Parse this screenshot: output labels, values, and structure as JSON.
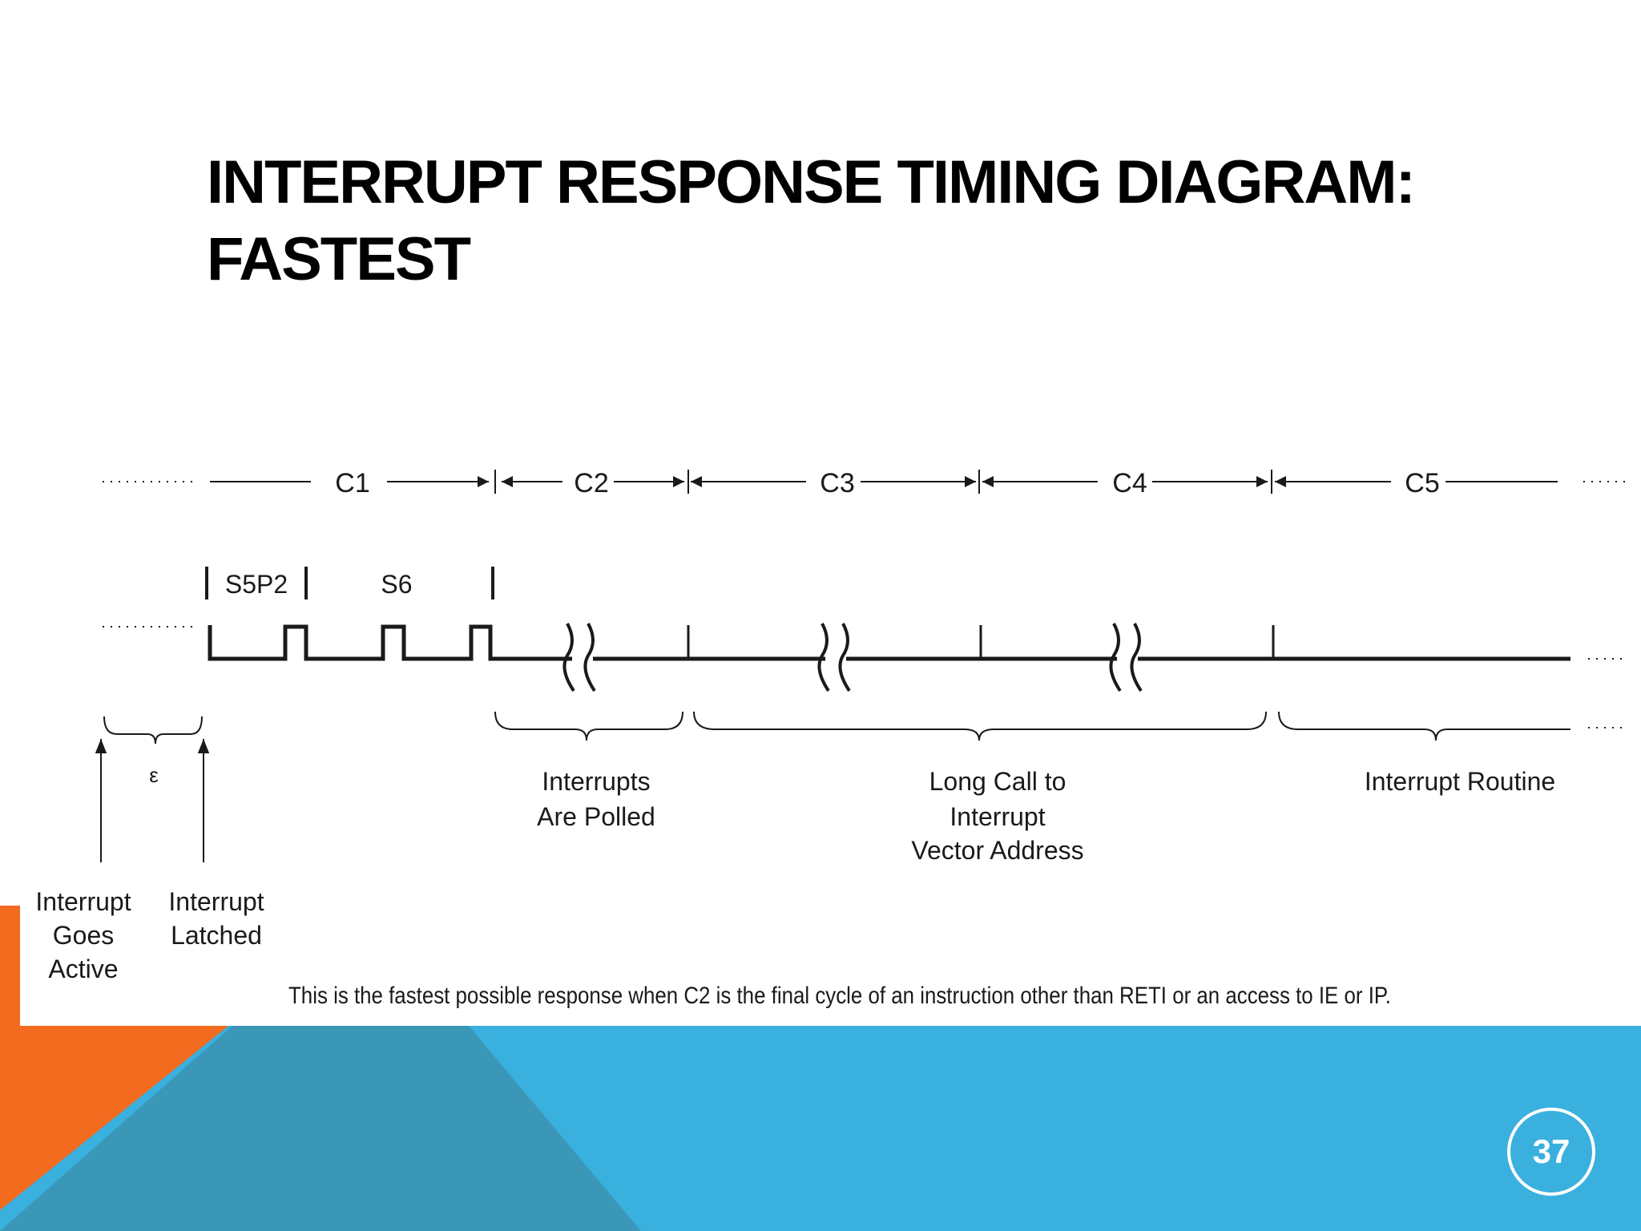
{
  "slide": {
    "title_lines": [
      "INTERRUPT RESPONSE TIMING DIAGRAM:",
      "FASTEST"
    ],
    "page_number": "37"
  },
  "diagram": {
    "cycles": [
      "C1",
      "C2",
      "C3",
      "C4",
      "C5"
    ],
    "states": [
      "S5P2",
      "S6"
    ],
    "epsilon": "ε",
    "phases": {
      "polled": [
        "Interrupts",
        "Are Polled"
      ],
      "long_call": [
        "Long Call to",
        "Interrupt",
        "Vector Address"
      ],
      "routine": [
        "Interrupt Routine"
      ]
    },
    "events": {
      "goes_active": [
        "Interrupt",
        "Goes",
        "Active"
      ],
      "latched": [
        "Interrupt",
        "Latched"
      ]
    },
    "caption": "This is the fastest possible response when C2 is the final cycle of an instruction other than RETI or an access to IE or IP."
  },
  "colors": {
    "orange": "#F26B1F",
    "blue": "#3AB0DE",
    "teal": "#3B97B8",
    "ink": "#1a1a1a"
  }
}
